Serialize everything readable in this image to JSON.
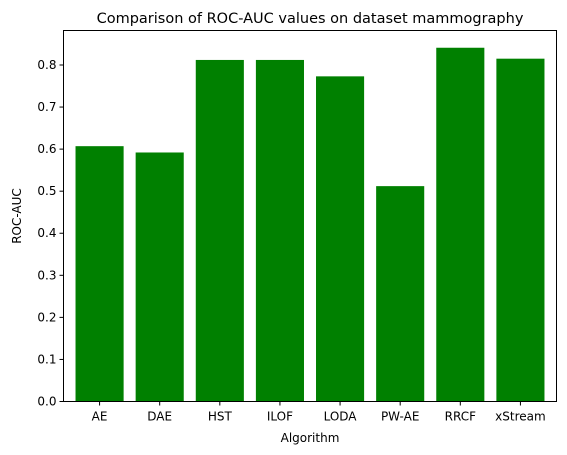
{
  "chart_data": {
    "type": "bar",
    "title": "Comparison of ROC-AUC values on dataset mammography",
    "xlabel": "Algorithm",
    "ylabel": "ROC-AUC",
    "categories": [
      "AE",
      "DAE",
      "HST",
      "ILOF",
      "LODA",
      "PW-AE",
      "RRCF",
      "xStream"
    ],
    "values": [
      0.607,
      0.592,
      0.812,
      0.812,
      0.773,
      0.512,
      0.841,
      0.815
    ],
    "ylim": [
      0,
      0.882
    ],
    "yticks": [
      0.0,
      0.1,
      0.2,
      0.3,
      0.4,
      0.5,
      0.6,
      0.7,
      0.8
    ],
    "ytick_labels": [
      "0.0",
      "0.1",
      "0.2",
      "0.3",
      "0.4",
      "0.5",
      "0.6",
      "0.7",
      "0.8"
    ],
    "bar_color": "#008000",
    "grid": false,
    "legend": false
  }
}
